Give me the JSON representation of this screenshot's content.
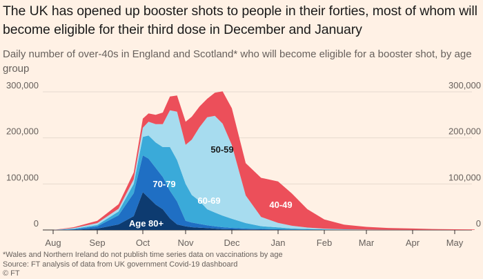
{
  "title": "The UK has opened up booster shots to people in their forties, most of whom will become eligible for their third dose in December and January",
  "subtitle": "Daily number of over-40s in England and Scotland* who will become eligible for a booster shot, by age group",
  "footnote": "*Wales and Northern Ireland do not publish time series data on vaccinations by age",
  "source": "Source: FT analysis of data from UK government Covid-19 dashboard",
  "credit": "© FT",
  "colors": {
    "background": "#fff1e5",
    "gridline": "#e6d9ce",
    "axis": "#33302e",
    "age_80_plus": "#0d3b70",
    "age_70_79": "#1f6fc4",
    "age_60_69": "#3aaad9",
    "age_50_59": "#a7dcef",
    "age_40_49": "#ec4f5a"
  },
  "chart_data": {
    "type": "area",
    "stacked": true,
    "x_axis_ticks": [
      "Aug",
      "Sep",
      "Oct",
      "Nov",
      "Dec",
      "Jan",
      "Feb",
      "Mar",
      "Apr",
      "May"
    ],
    "y_axis_ticks": [
      "0",
      "100,000",
      "200,000",
      "300,000"
    ],
    "ylim": [
      0,
      300000
    ],
    "xlabel": "",
    "ylabel": "",
    "grid": true,
    "y_axis_both_sides": true,
    "x": [
      "Aug 1",
      "Aug 15",
      "Sep 1",
      "Sep 15",
      "Sep 25",
      "Oct 1",
      "Oct 5",
      "Oct 10",
      "Oct 15",
      "Oct 20",
      "Oct 25",
      "Nov 1",
      "Nov 5",
      "Nov 10",
      "Nov 15",
      "Nov 20",
      "Nov 25",
      "Dec 1",
      "Dec 10",
      "Dec 20",
      "Jan 1",
      "Jan 10",
      "Jan 20",
      "Feb 1",
      "Feb 15",
      "Mar 1",
      "Mar 15",
      "Apr 1",
      "Apr 15",
      "May 1",
      "May 15"
    ],
    "series": [
      {
        "name": "Age 80+",
        "color_key": "age_80_plus",
        "values": [
          0,
          500,
          3000,
          12000,
          30000,
          82000,
          70000,
          55000,
          45000,
          25000,
          12000,
          8000,
          6000,
          5000,
          4000,
          3000,
          2000,
          1500,
          1000,
          800,
          500,
          300,
          200,
          100,
          0,
          0,
          0,
          0,
          0,
          0,
          0
        ]
      },
      {
        "name": "70-79",
        "color_key": "age_70_79",
        "values": [
          0,
          1000,
          5000,
          20000,
          50000,
          80000,
          85000,
          80000,
          70000,
          60000,
          50000,
          12000,
          10000,
          8000,
          6000,
          5000,
          4000,
          3000,
          2000,
          1500,
          1000,
          800,
          500,
          300,
          200,
          0,
          0,
          0,
          0,
          0,
          0
        ]
      },
      {
        "name": "60-69",
        "color_key": "age_60_69",
        "values": [
          0,
          1000,
          3000,
          8000,
          20000,
          40000,
          50000,
          55000,
          65000,
          95000,
          90000,
          80000,
          60000,
          50000,
          35000,
          30000,
          25000,
          20000,
          12000,
          6000,
          4000,
          2000,
          1500,
          1000,
          500,
          200,
          0,
          0,
          0,
          0,
          0
        ]
      },
      {
        "name": "50-59",
        "color_key": "age_50_59",
        "values": [
          0,
          1500,
          4000,
          6000,
          10000,
          20000,
          30000,
          40000,
          50000,
          80000,
          105000,
          85000,
          120000,
          160000,
          200000,
          210000,
          200000,
          160000,
          60000,
          20000,
          10000,
          6000,
          3000,
          1500,
          800,
          500,
          300,
          200,
          100,
          0,
          0
        ]
      },
      {
        "name": "40-49",
        "color_key": "age_40_49",
        "values": [
          0,
          2000,
          5000,
          10000,
          15000,
          20000,
          18000,
          20000,
          25000,
          30000,
          35000,
          50000,
          50000,
          45000,
          40000,
          50000,
          70000,
          80000,
          70000,
          85000,
          90000,
          70000,
          40000,
          20000,
          10000,
          6000,
          4000,
          3000,
          2000,
          1500,
          1000
        ]
      }
    ],
    "series_labels": [
      "Age 80+",
      "70-79",
      "60-69",
      "50-59",
      "40-49"
    ]
  }
}
